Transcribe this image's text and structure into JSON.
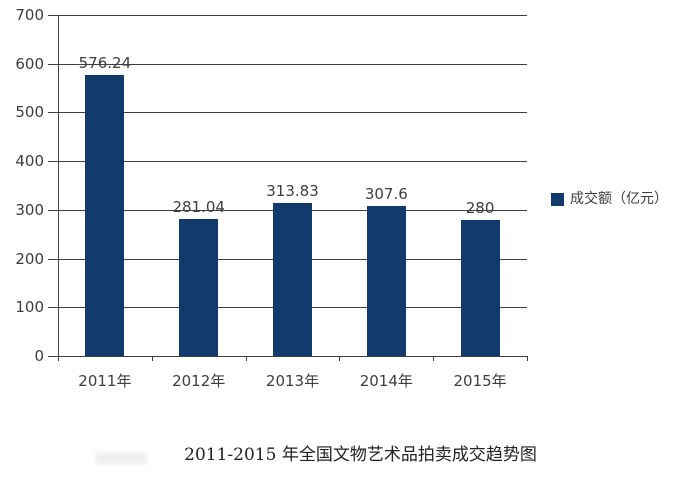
{
  "chart_data": {
    "type": "bar",
    "title": "2011-2015 年全国文物艺术品拍卖成交趋势图",
    "categories": [
      "2011年",
      "2012年",
      "2013年",
      "2014年",
      "2015年"
    ],
    "series": [
      {
        "name": "成交额（亿元）",
        "values": [
          576.24,
          281.04,
          313.83,
          307.6,
          280
        ]
      }
    ],
    "data_labels": [
      "576.24",
      "281.04",
      "313.83",
      "307.6",
      "280"
    ],
    "yticks": [
      0,
      100,
      200,
      300,
      400,
      500,
      600,
      700
    ],
    "ylim": [
      0,
      700
    ],
    "xlabel": "",
    "ylabel": "",
    "grid": true,
    "legend_position": "right",
    "colors": {
      "bar": "#123A6C",
      "gridline": "#3f3f3f",
      "text": "#3d3d3d",
      "background": "#FFFFFF"
    }
  },
  "legend": {
    "label": "成交额（亿元）",
    "swatch_color": "#123A6C"
  },
  "title": {
    "text": "2011-2015 年全国文物艺术品拍卖成交趋势图"
  }
}
